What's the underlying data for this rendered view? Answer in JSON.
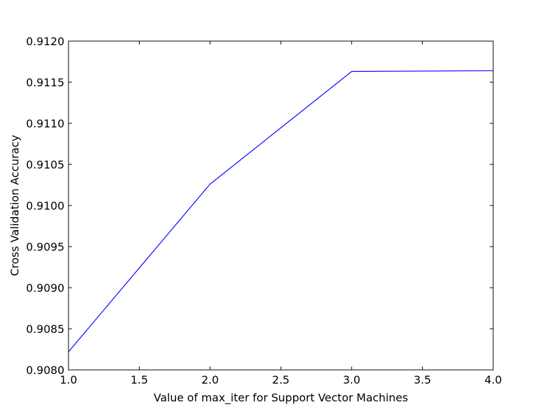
{
  "chart_data": {
    "type": "line",
    "xlabel": "Value of max_iter for Support Vector Machines",
    "ylabel": "Cross Validation Accuracy",
    "xlim": [
      1.0,
      4.0
    ],
    "ylim": [
      0.908,
      0.912
    ],
    "xticks": [
      "1.0",
      "1.5",
      "2.0",
      "2.5",
      "3.0",
      "3.5",
      "4.0"
    ],
    "yticks": [
      "0.9080",
      "0.9085",
      "0.9090",
      "0.9095",
      "0.9100",
      "0.9105",
      "0.9110",
      "0.9115",
      "0.9120"
    ],
    "grid": false,
    "series": [
      {
        "color": "#0000ff",
        "x": [
          1,
          2,
          3,
          4
        ],
        "y": [
          0.90822,
          0.91026,
          0.91163,
          0.91164
        ]
      }
    ]
  }
}
